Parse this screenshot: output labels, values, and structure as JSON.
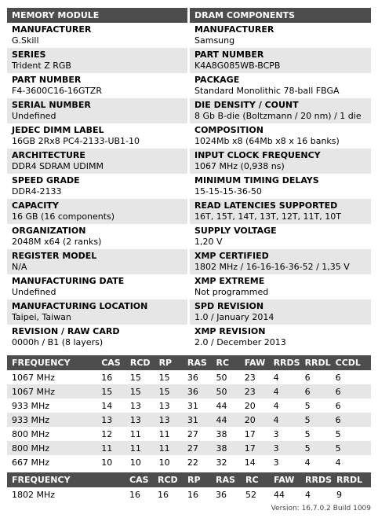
{
  "memory_module": {
    "header": "MEMORY MODULE",
    "fields": [
      {
        "label": "MANUFACTURER",
        "value": "G.Skill"
      },
      {
        "label": "SERIES",
        "value": "Trident Z RGB"
      },
      {
        "label": "PART NUMBER",
        "value": "F4-3600C16-16GTZR"
      },
      {
        "label": "SERIAL NUMBER",
        "value": "Undefined"
      },
      {
        "label": "JEDEC DIMM LABEL",
        "value": "16GB 2Rx8 PC4-2133-UB1-10"
      },
      {
        "label": "ARCHITECTURE",
        "value": "DDR4 SDRAM UDIMM"
      },
      {
        "label": "SPEED GRADE",
        "value": "DDR4-2133"
      },
      {
        "label": "CAPACITY",
        "value": "16 GB (16 components)"
      },
      {
        "label": "ORGANIZATION",
        "value": "2048M x64 (2 ranks)"
      },
      {
        "label": "REGISTER MODEL",
        "value": "N/A"
      },
      {
        "label": "MANUFACTURING DATE",
        "value": "Undefined"
      },
      {
        "label": "MANUFACTURING LOCATION",
        "value": "Taipei, Taiwan"
      },
      {
        "label": "REVISION / RAW CARD",
        "value": "0000h / B1 (8 layers)"
      }
    ]
  },
  "dram_components": {
    "header": "DRAM COMPONENTS",
    "fields": [
      {
        "label": "MANUFACTURER",
        "value": "Samsung"
      },
      {
        "label": "PART NUMBER",
        "value": "K4A8G085WB-BCPB"
      },
      {
        "label": "PACKAGE",
        "value": "Standard Monolithic 78-ball FBGA"
      },
      {
        "label": "DIE DENSITY / COUNT",
        "value": "8 Gb B-die (Boltzmann / 20 nm) / 1 die"
      },
      {
        "label": "COMPOSITION",
        "value": "1024Mb x8 (64Mb x8 x 16 banks)"
      },
      {
        "label": "INPUT CLOCK FREQUENCY",
        "value": "1067 MHz (0,938 ns)"
      },
      {
        "label": "MINIMUM TIMING DELAYS",
        "value": "15-15-15-36-50"
      },
      {
        "label": "READ LATENCIES SUPPORTED",
        "value": "16T, 15T, 14T, 13T, 12T, 11T, 10T"
      },
      {
        "label": "SUPPLY VOLTAGE",
        "value": "1,20 V"
      },
      {
        "label": "XMP CERTIFIED",
        "value": "1802 MHz / 16-16-16-36-52 / 1,35 V"
      },
      {
        "label": "XMP EXTREME",
        "value": "Not programmed"
      },
      {
        "label": "SPD REVISION",
        "value": "1.0 / January 2014"
      },
      {
        "label": "XMP REVISION",
        "value": "2.0 / December 2013"
      }
    ]
  },
  "timing_table": {
    "headers": [
      "FREQUENCY",
      "CAS",
      "RCD",
      "RP",
      "RAS",
      "RC",
      "FAW",
      "RRDS",
      "RRDL",
      "CCDL"
    ],
    "rows": [
      [
        "1067 MHz",
        "16",
        "15",
        "15",
        "36",
        "50",
        "23",
        "4",
        "6",
        "6"
      ],
      [
        "1067 MHz",
        "15",
        "15",
        "15",
        "36",
        "50",
        "23",
        "4",
        "6",
        "6"
      ],
      [
        "933 MHz",
        "14",
        "13",
        "13",
        "31",
        "44",
        "20",
        "4",
        "5",
        "6"
      ],
      [
        "933 MHz",
        "13",
        "13",
        "13",
        "31",
        "44",
        "20",
        "4",
        "5",
        "6"
      ],
      [
        "800 MHz",
        "12",
        "11",
        "11",
        "27",
        "38",
        "17",
        "3",
        "5",
        "5"
      ],
      [
        "800 MHz",
        "11",
        "11",
        "11",
        "27",
        "38",
        "17",
        "3",
        "5",
        "5"
      ],
      [
        "667 MHz",
        "10",
        "10",
        "10",
        "22",
        "32",
        "14",
        "3",
        "4",
        "4"
      ]
    ]
  },
  "xmp_table": {
    "headers": [
      "FREQUENCY",
      "CAS",
      "RCD",
      "RP",
      "RAS",
      "RC",
      "FAW",
      "RRDS",
      "RRDL"
    ],
    "rows": [
      [
        "1802 MHz",
        "16",
        "16",
        "16",
        "36",
        "52",
        "44",
        "4",
        "9"
      ]
    ]
  },
  "version": "Version: 16.7.0.2 Build 1009"
}
